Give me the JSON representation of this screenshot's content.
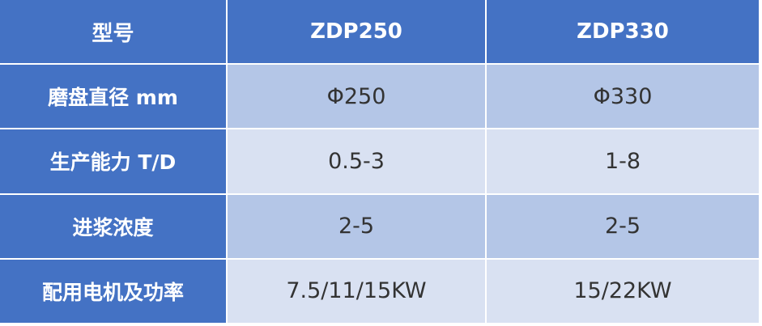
{
  "table": {
    "headers": [
      "型号",
      "ZDP250",
      "ZDP330"
    ],
    "rows": [
      {
        "label": "磨盘直径 mm",
        "values": [
          "Φ250",
          "Φ330"
        ]
      },
      {
        "label": "生产能力 T/D",
        "values": [
          "0.5-3",
          "1-8"
        ]
      },
      {
        "label": "进浆浓度",
        "values": [
          "2-5",
          "2-5"
        ]
      },
      {
        "label": "配用电机及功率",
        "values": [
          "7.5/11/15KW",
          "15/22KW"
        ]
      }
    ]
  },
  "colors": {
    "header": "#4472C4",
    "row_dark": "#B4C6E7",
    "row_light": "#D9E1F2"
  }
}
